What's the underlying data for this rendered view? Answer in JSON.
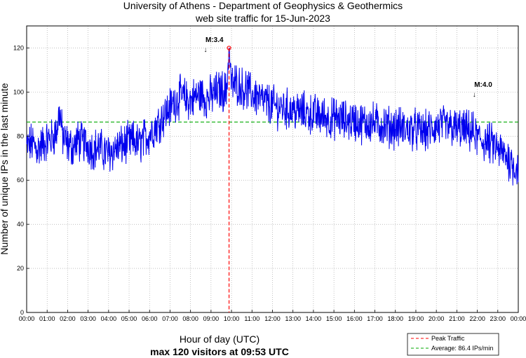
{
  "chart_data": {
    "type": "line",
    "title": "University of Athens - Department of Geophysics & Geothermics",
    "subtitle": "web site traffic for 15-Jun-2023",
    "xlabel": "Hour of day (UTC)",
    "ylabel": "Number of unique IPs in the last minute",
    "summary": "max 120 visitors at 09:53 UTC",
    "xlim": [
      0,
      24
    ],
    "ylim": [
      0,
      130
    ],
    "y_ticks": [
      0,
      20,
      40,
      60,
      80,
      100,
      120
    ],
    "x_ticks": [
      "00:00",
      "01:00",
      "02:00",
      "03:00",
      "04:00",
      "05:00",
      "06:00",
      "07:00",
      "08:00",
      "09:00",
      "10:00",
      "11:00",
      "12:00",
      "13:00",
      "14:00",
      "15:00",
      "16:00",
      "17:00",
      "18:00",
      "19:00",
      "20:00",
      "21:00",
      "22:00",
      "23:00",
      "00:00"
    ],
    "grid": true,
    "legend_position": "bottom-right",
    "series": [
      {
        "name": "",
        "color": "#0000ee",
        "x": [
          0,
          0.25,
          0.5,
          0.75,
          1,
          1.25,
          1.5,
          1.6,
          1.75,
          2,
          2.25,
          2.5,
          2.75,
          3,
          3.25,
          3.5,
          3.75,
          4,
          4.25,
          4.5,
          4.75,
          5,
          5.25,
          5.5,
          5.75,
          6,
          6.25,
          6.5,
          6.75,
          7,
          7.25,
          7.5,
          7.75,
          8,
          8.25,
          8.5,
          8.75,
          9,
          9.25,
          9.5,
          9.75,
          9.88,
          10,
          10.25,
          10.5,
          10.75,
          11,
          11.25,
          11.5,
          11.75,
          12,
          12.25,
          12.5,
          12.75,
          13,
          13.25,
          13.5,
          13.75,
          14,
          14.25,
          14.5,
          14.75,
          15,
          15.25,
          15.5,
          15.75,
          16,
          16.25,
          16.5,
          16.75,
          17,
          17.25,
          17.5,
          17.75,
          18,
          18.25,
          18.5,
          18.75,
          19,
          19.25,
          19.5,
          19.75,
          20,
          20.25,
          20.5,
          20.75,
          21,
          21.25,
          21.5,
          21.75,
          22,
          22.25,
          22.5,
          22.75,
          23,
          23.25,
          23.5,
          23.75,
          24
        ],
        "y": [
          75,
          77,
          74,
          76,
          78,
          79,
          83,
          92,
          80,
          76,
          75,
          78,
          77,
          76,
          74,
          75,
          73,
          72,
          74,
          75,
          76,
          77,
          78,
          76,
          79,
          81,
          84,
          87,
          90,
          93,
          96,
          98,
          97,
          96,
          98,
          99,
          97,
          98,
          100,
          101,
          100,
          120,
          103,
          104,
          102,
          101,
          99,
          98,
          96,
          95,
          94,
          93,
          93,
          92,
          92,
          91,
          91,
          90,
          90,
          89,
          89,
          88,
          88,
          88,
          87,
          87,
          87,
          86,
          86,
          86,
          86,
          85,
          85,
          84,
          84,
          84,
          83,
          83,
          83,
          82,
          82,
          83,
          84,
          85,
          84,
          84,
          83,
          83,
          82,
          82,
          79,
          78,
          77,
          76,
          74,
          72,
          70,
          67,
          65
        ]
      }
    ],
    "reference_lines": [
      {
        "label": "Peak Traffic",
        "orientation": "vertical",
        "x": 9.88,
        "color": "#ff0000",
        "style": "dashed"
      },
      {
        "label": "Average: 86.4 IPs/min",
        "orientation": "horizontal",
        "y": 86.4,
        "color": "#00aa00",
        "style": "dashed"
      }
    ],
    "peak_point": {
      "x": 9.88,
      "y": 120,
      "color": "#ff0000"
    },
    "annotations": [
      {
        "text": "M:3.4",
        "x": 8.73,
        "arrow": "down"
      },
      {
        "text": "M:4.0",
        "x": 21.85,
        "arrow": "down"
      }
    ]
  }
}
